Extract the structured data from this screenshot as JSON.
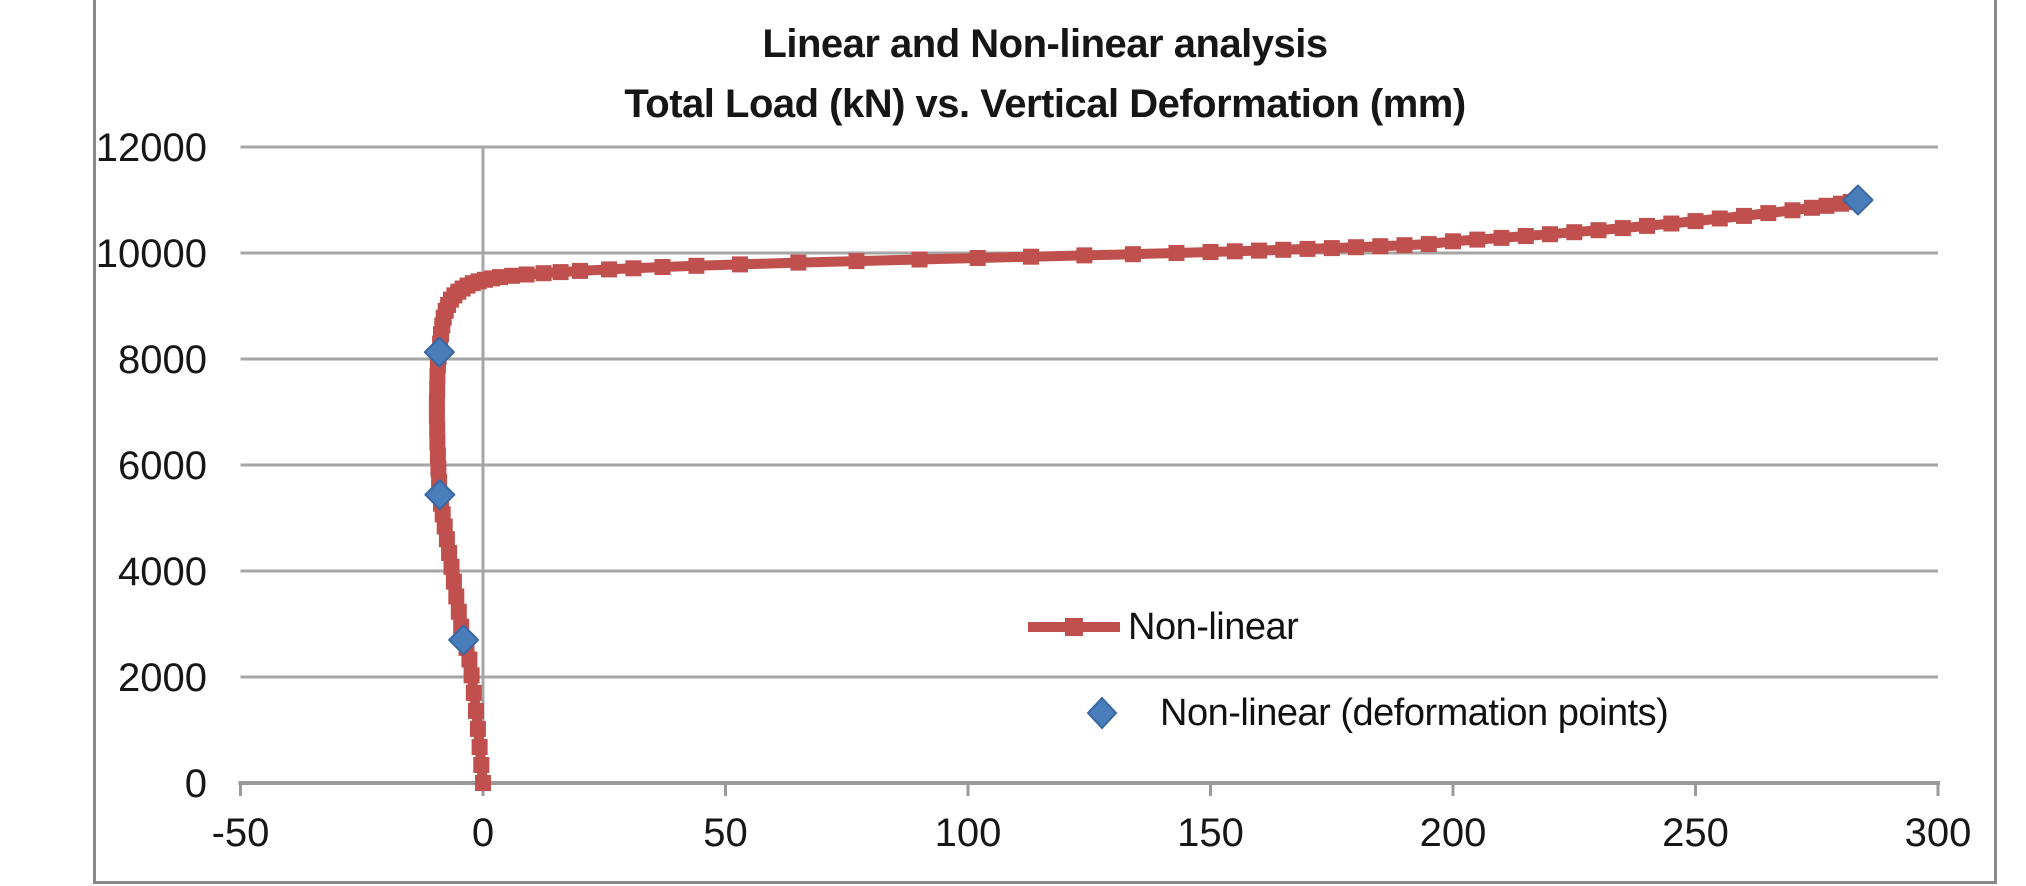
{
  "chart_data": {
    "type": "line",
    "title": "Linear and Non-linear analysis",
    "subtitle": "Total Load (kN) vs. Vertical Deformation (mm)",
    "xlabel": "",
    "ylabel": "",
    "xlim": [
      -50,
      300
    ],
    "ylim": [
      0,
      12000
    ],
    "x_ticks": [
      -50,
      0,
      50,
      100,
      150,
      200,
      250,
      300
    ],
    "y_ticks": [
      0,
      2000,
      4000,
      6000,
      8000,
      10000,
      12000
    ],
    "grid": {
      "horizontal": true,
      "vertical_zero_line_only": true
    },
    "legend_position": "inside-right-lower",
    "series": [
      {
        "name": "Non-linear",
        "color": "#C0504D",
        "marker": "square",
        "points": [
          [
            0,
            0
          ],
          [
            -0.35,
            340
          ],
          [
            -0.7,
            680
          ],
          [
            -1.05,
            1020
          ],
          [
            -1.45,
            1360
          ],
          [
            -1.9,
            1700
          ],
          [
            -2.35,
            2030
          ],
          [
            -2.8,
            2330
          ],
          [
            -3.4,
            2550
          ],
          [
            -4.0,
            2700
          ],
          [
            -4.5,
            2950
          ],
          [
            -5.0,
            3230
          ],
          [
            -5.5,
            3520
          ],
          [
            -6.0,
            3800
          ],
          [
            -6.5,
            4080
          ],
          [
            -7.0,
            4340
          ],
          [
            -7.45,
            4600
          ],
          [
            -7.9,
            4840
          ],
          [
            -8.3,
            5070
          ],
          [
            -8.65,
            5270
          ],
          [
            -8.9,
            5440
          ],
          [
            -9.05,
            5680
          ],
          [
            -9.2,
            5930
          ],
          [
            -9.3,
            6180
          ],
          [
            -9.4,
            6430
          ],
          [
            -9.45,
            6680
          ],
          [
            -9.5,
            6930
          ],
          [
            -9.5,
            7180
          ],
          [
            -9.45,
            7430
          ],
          [
            -9.4,
            7670
          ],
          [
            -9.3,
            7890
          ],
          [
            -9.15,
            8040
          ],
          [
            -9.0,
            8130
          ],
          [
            -8.85,
            8290
          ],
          [
            -8.65,
            8470
          ],
          [
            -8.4,
            8630
          ],
          [
            -8.1,
            8780
          ],
          [
            -7.7,
            8910
          ],
          [
            -7.2,
            9020
          ],
          [
            -6.6,
            9120
          ],
          [
            -5.9,
            9200
          ],
          [
            -5.1,
            9270
          ],
          [
            -4.2,
            9330
          ],
          [
            -3.2,
            9385
          ],
          [
            -2.1,
            9430
          ],
          [
            -0.9,
            9465
          ],
          [
            0.4,
            9495
          ],
          [
            1.9,
            9520
          ],
          [
            3.5,
            9545
          ],
          [
            6,
            9570
          ],
          [
            9,
            9595
          ],
          [
            12.5,
            9618
          ],
          [
            16,
            9640
          ],
          [
            20,
            9662
          ],
          [
            26,
            9690
          ],
          [
            31,
            9712
          ],
          [
            37,
            9735
          ],
          [
            44,
            9758
          ],
          [
            53,
            9785
          ],
          [
            65,
            9818
          ],
          [
            77,
            9848
          ],
          [
            90,
            9878
          ],
          [
            102,
            9905
          ],
          [
            113,
            9930
          ],
          [
            124,
            9955
          ],
          [
            134,
            9978
          ],
          [
            143,
            10000
          ],
          [
            150,
            10018
          ],
          [
            155,
            10032
          ],
          [
            160,
            10046
          ],
          [
            165,
            10061
          ],
          [
            170,
            10077
          ],
          [
            175,
            10093
          ],
          [
            180,
            10110
          ],
          [
            185,
            10128
          ],
          [
            190,
            10147
          ],
          [
            195,
            10167
          ],
          [
            200,
            10220
          ],
          [
            205,
            10252
          ],
          [
            210,
            10285
          ],
          [
            215,
            10320
          ],
          [
            220,
            10355
          ],
          [
            225,
            10392
          ],
          [
            230,
            10430
          ],
          [
            235,
            10470
          ],
          [
            240,
            10512
          ],
          [
            245,
            10556
          ],
          [
            250,
            10602
          ],
          [
            255,
            10650
          ],
          [
            260,
            10700
          ],
          [
            265,
            10752
          ],
          [
            270,
            10806
          ],
          [
            274,
            10852
          ],
          [
            277,
            10890
          ],
          [
            280,
            10930
          ],
          [
            282,
            10962
          ],
          [
            283.5,
            11000
          ]
        ]
      },
      {
        "name": "Non-linear (deformation points)",
        "color": "#4A7EBB",
        "marker": "diamond",
        "points": [
          [
            -4.0,
            2700
          ],
          [
            -8.9,
            5440
          ],
          [
            -9.0,
            8130
          ],
          [
            283.5,
            11000
          ]
        ]
      }
    ]
  },
  "colors": {
    "series_nonlinear": "#C0504D",
    "series_points_fill": "#4A7EBB",
    "series_points_stroke": "#3A68A0",
    "gridline": "#A6A6A6",
    "axis": "#9A9A9A",
    "frame": "#8A8A8A",
    "text": "#161616",
    "background": "#FFFFFF"
  }
}
